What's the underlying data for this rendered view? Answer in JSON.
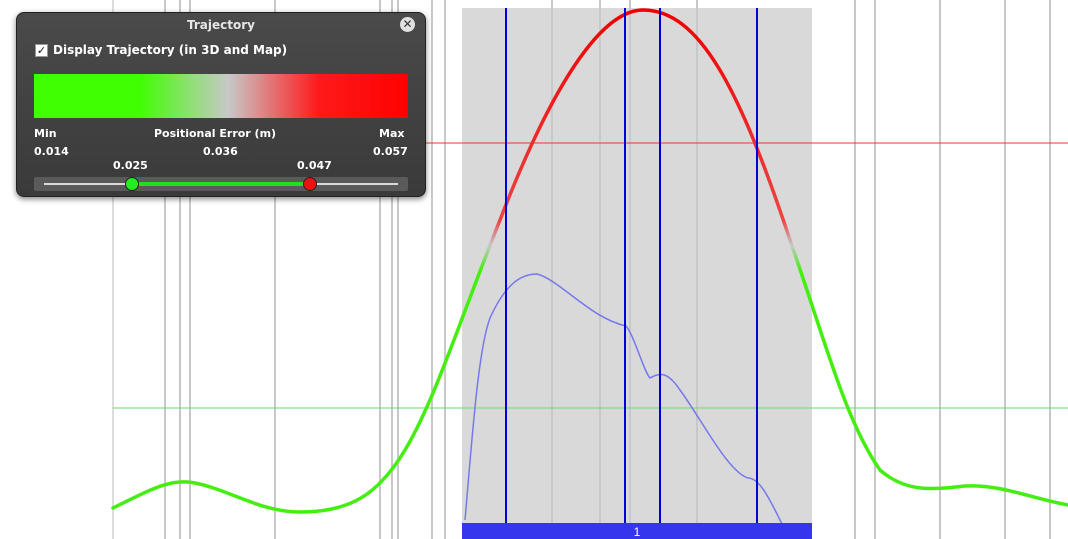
{
  "panel": {
    "title": "Trajectory",
    "checkbox_label": "Display Trajectory (in 3D and Map)",
    "checkbox_checked": true,
    "min_label": "Min",
    "max_label": "Max",
    "axis_label": "Positional Error (m)",
    "min_value": "0.014",
    "mid_value": "0.036",
    "max_value": "0.057",
    "low_threshold": "0.025",
    "high_threshold": "0.047",
    "gradient_colors": [
      "#3fff00",
      "#c8c8c8",
      "#ff0000"
    ]
  },
  "plot": {
    "segment_label": "1",
    "colors": {
      "background": "#ffffff",
      "selection_region": "#d9d9d9",
      "grid_line": "#c8c8c8",
      "blue_marker": "#0000dd",
      "red_threshold": "#ee3333",
      "green_threshold": "#66dd66",
      "trajectory_low": "#44ee11",
      "trajectory_high": "#ee1111",
      "secondary_curve": "#7777ee",
      "segment_bar": "#3535ee"
    }
  }
}
